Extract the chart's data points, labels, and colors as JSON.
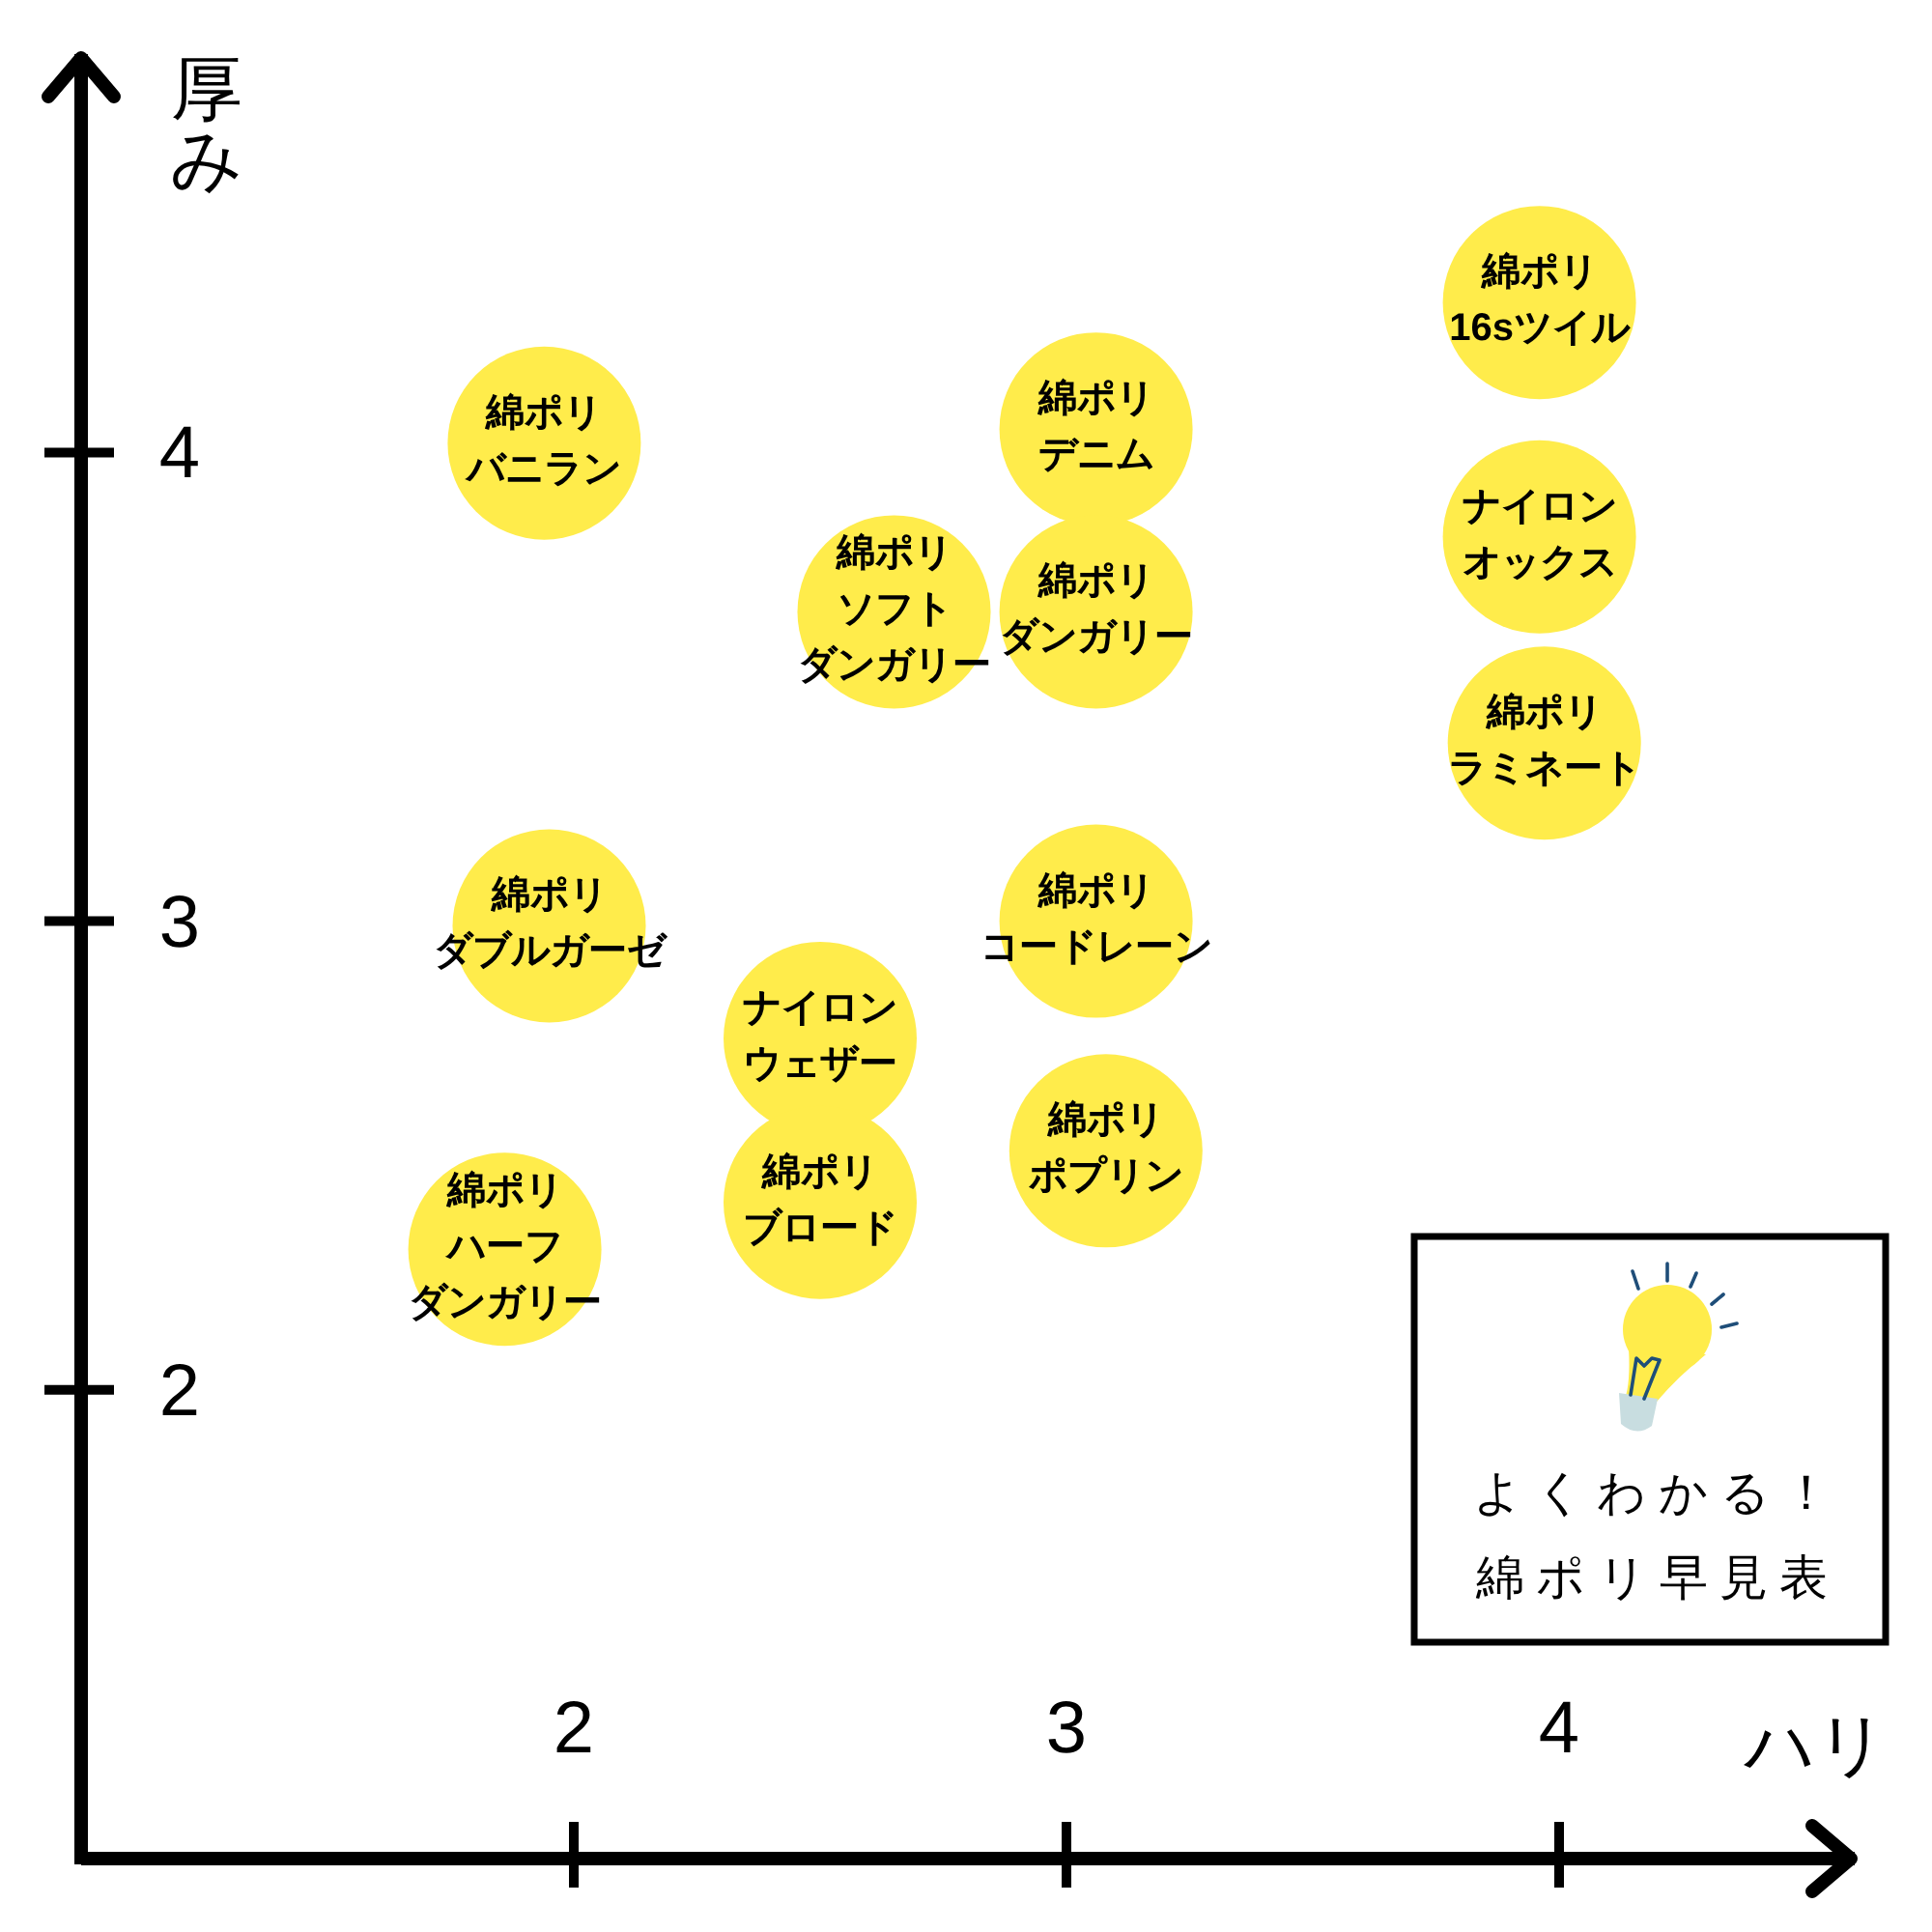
{
  "chart_data": {
    "type": "scatter",
    "title": "よくわかる！",
    "subtitle": "綿ポリ早見表",
    "xlabel": "ハリ",
    "ylabel": "厚み",
    "x": [
      1.94,
      2.65,
      3.06,
      3.06,
      3.96,
      3.96,
      3.97,
      1.95,
      3.06,
      2.5,
      2.5,
      3.08,
      1.86
    ],
    "values": [
      4.02,
      3.66,
      4.05,
      3.66,
      4.32,
      3.82,
      3.38,
      2.99,
      3.0,
      2.75,
      2.4,
      2.51,
      2.3
    ],
    "color": "#ffec4b",
    "marker": "circle",
    "xlim": [
      1,
      4.6
    ],
    "ylim": [
      1,
      4.85
    ],
    "xticks": [
      2,
      3,
      4
    ],
    "yticks": [
      2,
      3,
      4
    ],
    "annotations": [
      {
        "text": "綿ポリ",
        "x": 1.94,
        "y": 4.02
      },
      {
        "text": "バニラン",
        "x": 1.94,
        "y": 4.02
      },
      {
        "text": "綿ポリ",
        "x": 2.65,
        "y": 3.66
      },
      {
        "text": "ソフト",
        "x": 2.65,
        "y": 3.66
      },
      {
        "text": "ダンガリー",
        "x": 2.65,
        "y": 3.66
      },
      {
        "text": "綿ポリ",
        "x": 3.06,
        "y": 4.05
      },
      {
        "text": "デニム",
        "x": 3.06,
        "y": 4.05
      },
      {
        "text": "綿ポリ",
        "x": 3.06,
        "y": 3.66
      },
      {
        "text": "ダンガリー",
        "x": 3.06,
        "y": 3.66
      },
      {
        "text": "綿ポリ",
        "x": 3.96,
        "y": 4.32
      },
      {
        "text": "16sツイル",
        "x": 3.96,
        "y": 4.32
      },
      {
        "text": "ナイロン",
        "x": 3.96,
        "y": 3.82
      },
      {
        "text": "オックス",
        "x": 3.96,
        "y": 3.82
      },
      {
        "text": "綿ポリ",
        "x": 3.97,
        "y": 3.38
      },
      {
        "text": "ラミネート",
        "x": 3.97,
        "y": 3.38
      },
      {
        "text": "綿ポリ",
        "x": 1.95,
        "y": 2.99
      },
      {
        "text": "ダブルガーゼ",
        "x": 1.95,
        "y": 2.99
      },
      {
        "text": "綿ポリ",
        "x": 3.06,
        "y": 3.0
      },
      {
        "text": "コードレーン",
        "x": 3.06,
        "y": 3.0
      },
      {
        "text": "ナイロン",
        "x": 2.5,
        "y": 2.75
      },
      {
        "text": "ウェザー",
        "x": 2.5,
        "y": 2.75
      },
      {
        "text": "綿ポリ",
        "x": 2.5,
        "y": 2.4
      },
      {
        "text": "ブロード",
        "x": 2.5,
        "y": 2.4
      },
      {
        "text": "綿ポリ",
        "x": 3.08,
        "y": 2.51
      },
      {
        "text": "ポプリン",
        "x": 3.08,
        "y": 2.51
      },
      {
        "text": "綿ポリ",
        "x": 1.86,
        "y": 2.3
      },
      {
        "text": "ハーフ",
        "x": 1.86,
        "y": 2.3
      },
      {
        "text": "ダンガリー",
        "x": 1.86,
        "y": 2.3
      }
    ]
  }
}
